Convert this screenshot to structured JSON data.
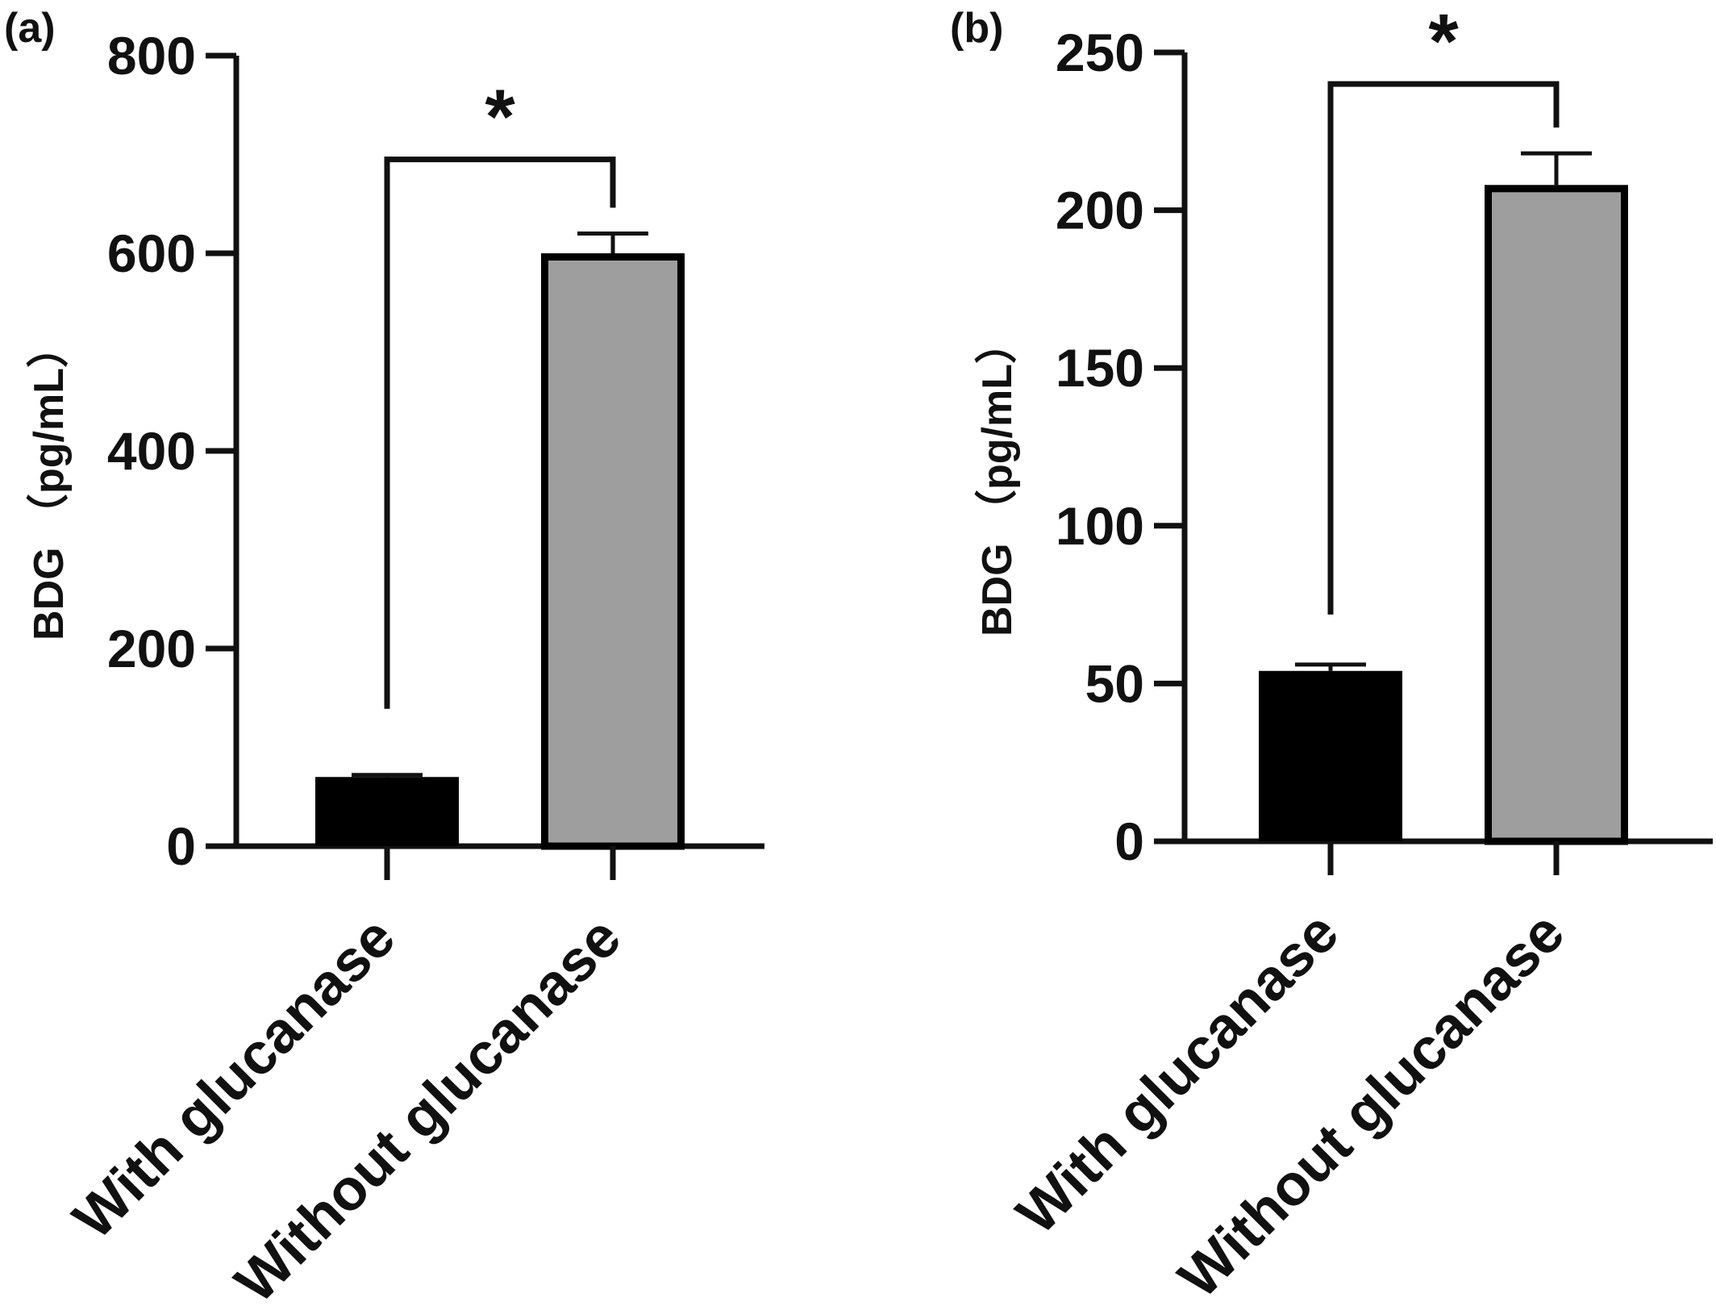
{
  "chart_data": [
    {
      "type": "bar",
      "panel_label": "(a)",
      "categories": [
        "With glucanase",
        "Without glucanase"
      ],
      "values": [
        70,
        600
      ],
      "error_upper": [
        72,
        620
      ],
      "bar_colors": [
        "#000000",
        "#9e9e9e"
      ],
      "ylabel": "BDG （pg/mL）",
      "ylim": [
        0,
        800
      ],
      "yticks": [
        0,
        200,
        400,
        600,
        800
      ],
      "ytick_labels": [
        "0",
        "200",
        "400",
        "600",
        "800"
      ],
      "significance": {
        "pair": [
          0,
          1
        ],
        "label": "*",
        "bracket_y": 695
      },
      "grid": false,
      "legend": "none"
    },
    {
      "type": "bar",
      "panel_label": "(b)",
      "categories": [
        "With glucanase",
        "Without glucanase"
      ],
      "values": [
        54,
        208
      ],
      "error_upper": [
        56,
        218
      ],
      "bar_colors": [
        "#000000",
        "#9e9e9e"
      ],
      "ylabel": "BDG （pg/mL）",
      "ylim": [
        0,
        250
      ],
      "yticks": [
        0,
        50,
        100,
        150,
        200,
        250
      ],
      "ytick_labels": [
        "0",
        "50",
        "100",
        "150",
        "200",
        "250"
      ],
      "significance": {
        "pair": [
          0,
          1
        ],
        "label": "*",
        "bracket_y": 240
      },
      "grid": false,
      "legend": "none"
    }
  ]
}
